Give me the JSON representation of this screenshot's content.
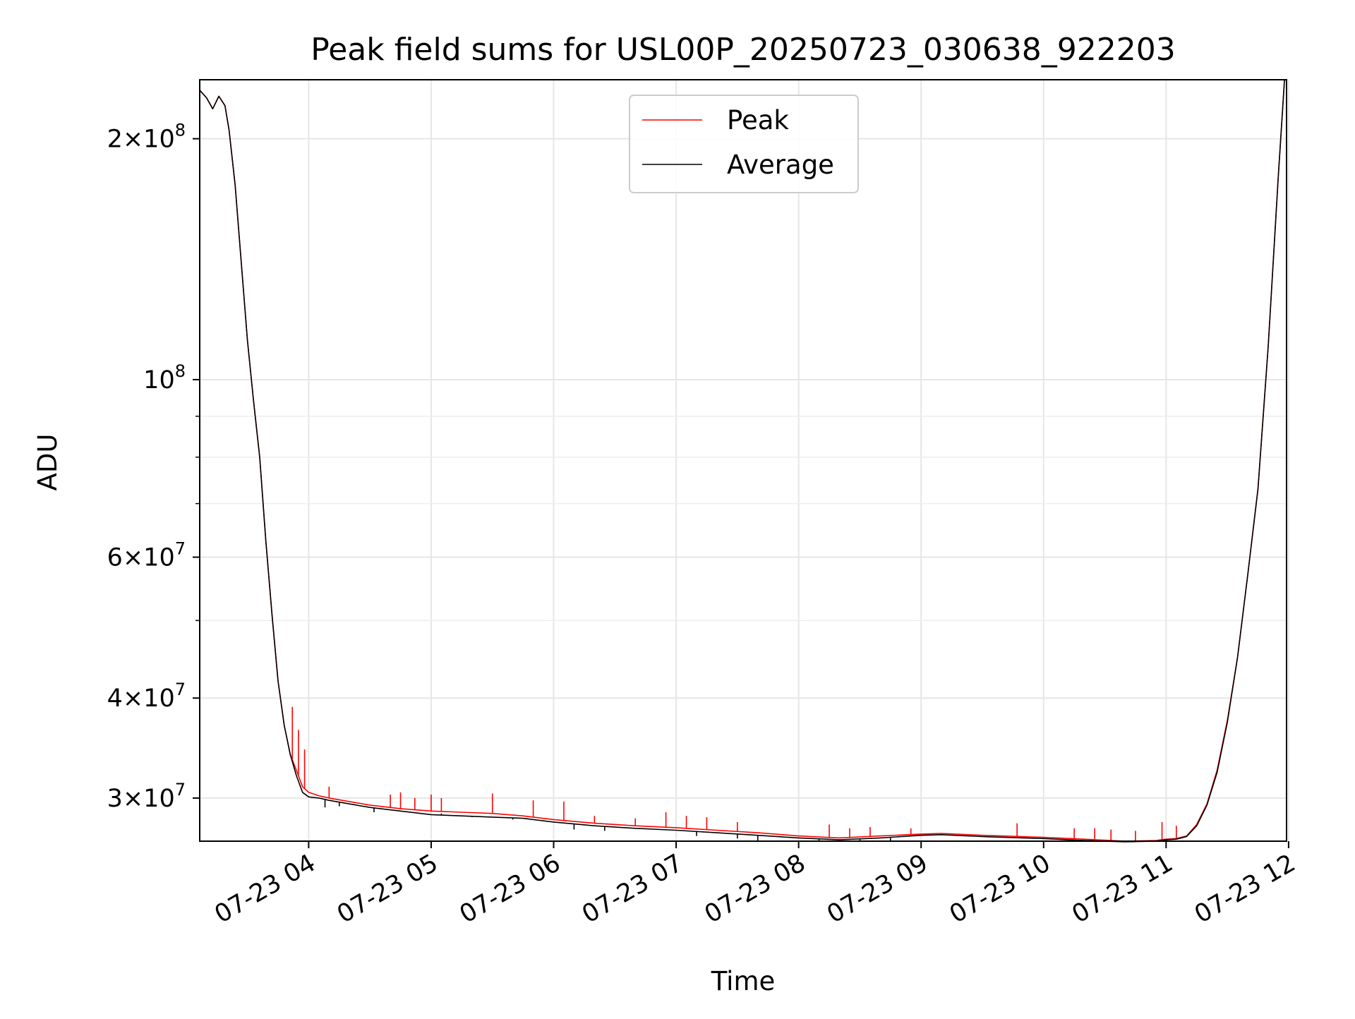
{
  "chart_data": {
    "type": "line",
    "title": "Peak field sums for USL00P_20250723_030638_922203",
    "xlabel": "Time",
    "ylabel": "ADU",
    "yscale": "log",
    "ylim": [
      26500000,
      237000000
    ],
    "xlim": [
      "2025-07-23 03:06:38",
      "2025-07-23 11:59:00"
    ],
    "grid": true,
    "legend": {
      "placement": "top-center",
      "entries": [
        "Peak",
        "Average"
      ]
    },
    "x_ticks": [
      {
        "x": "2025-07-23 04:00",
        "label": "07-23 04"
      },
      {
        "x": "2025-07-23 05:00",
        "label": "07-23 05"
      },
      {
        "x": "2025-07-23 06:00",
        "label": "07-23 06"
      },
      {
        "x": "2025-07-23 07:00",
        "label": "07-23 07"
      },
      {
        "x": "2025-07-23 08:00",
        "label": "07-23 08"
      },
      {
        "x": "2025-07-23 09:00",
        "label": "07-23 09"
      },
      {
        "x": "2025-07-23 10:00",
        "label": "07-23 10"
      },
      {
        "x": "2025-07-23 11:00",
        "label": "07-23 11"
      },
      {
        "x": "2025-07-23 12:00",
        "label": "07-23 12"
      }
    ],
    "y_ticks": [
      {
        "value": 30000000,
        "mantissa": "3",
        "exp": "7"
      },
      {
        "value": 40000000,
        "mantissa": "4",
        "exp": "7"
      },
      {
        "value": 60000000,
        "mantissa": "6",
        "exp": "7"
      },
      {
        "value": 100000000,
        "mantissa": "",
        "exp": "8"
      },
      {
        "value": 200000000,
        "mantissa": "2",
        "exp": "8"
      }
    ],
    "y_minor_ticks": [
      50000000,
      70000000,
      80000000,
      90000000
    ],
    "series": [
      {
        "name": "Peak",
        "color": "#ff0000",
        "x": [
          "2025-07-23 03:06:38",
          "2025-07-23 03:10",
          "2025-07-23 03:13",
          "2025-07-23 03:16",
          "2025-07-23 03:19",
          "2025-07-23 03:21",
          "2025-07-23 03:24",
          "2025-07-23 03:27",
          "2025-07-23 03:30",
          "2025-07-23 03:33",
          "2025-07-23 03:36",
          "2025-07-23 03:39",
          "2025-07-23 03:42",
          "2025-07-23 03:45",
          "2025-07-23 03:48",
          "2025-07-23 03:51",
          "2025-07-23 03:54",
          "2025-07-23 03:57",
          "2025-07-23 04:00",
          "2025-07-23 04:05",
          "2025-07-23 04:10",
          "2025-07-23 04:20",
          "2025-07-23 04:30",
          "2025-07-23 04:45",
          "2025-07-23 05:00",
          "2025-07-23 05:15",
          "2025-07-23 05:30",
          "2025-07-23 05:45",
          "2025-07-23 06:00",
          "2025-07-23 06:20",
          "2025-07-23 06:40",
          "2025-07-23 07:00",
          "2025-07-23 07:20",
          "2025-07-23 07:40",
          "2025-07-23 08:00",
          "2025-07-23 08:20",
          "2025-07-23 08:40",
          "2025-07-23 09:00",
          "2025-07-23 09:10",
          "2025-07-23 09:30",
          "2025-07-23 10:00",
          "2025-07-23 10:20",
          "2025-07-23 10:40",
          "2025-07-23 10:55",
          "2025-07-23 11:00",
          "2025-07-23 11:05",
          "2025-07-23 11:10",
          "2025-07-23 11:15",
          "2025-07-23 11:20",
          "2025-07-23 11:25",
          "2025-07-23 11:30",
          "2025-07-23 11:35",
          "2025-07-23 11:40",
          "2025-07-23 11:45",
          "2025-07-23 11:50",
          "2025-07-23 11:55",
          "2025-07-23 11:58"
        ],
        "y": [
          230000000,
          225000000,
          218000000,
          226000000,
          220000000,
          205000000,
          175000000,
          140000000,
          112000000,
          94000000,
          80000000,
          63000000,
          51000000,
          42000000,
          37000000,
          34000000,
          32500000,
          31000000,
          30500000,
          30200000,
          30000000,
          29700000,
          29400000,
          29100000,
          28900000,
          28800000,
          28700000,
          28500000,
          28200000,
          27900000,
          27700000,
          27550000,
          27350000,
          27150000,
          26900000,
          26750000,
          26900000,
          27050000,
          27100000,
          26950000,
          26800000,
          26650000,
          26500000,
          26550000,
          26650000,
          26700000,
          26900000,
          27800000,
          29500000,
          32500000,
          37500000,
          45000000,
          57000000,
          73000000,
          110000000,
          180000000,
          237000000
        ]
      },
      {
        "name": "Average",
        "color": "#000000",
        "x": [
          "2025-07-23 03:06:38",
          "2025-07-23 03:10",
          "2025-07-23 03:13",
          "2025-07-23 03:16",
          "2025-07-23 03:19",
          "2025-07-23 03:21",
          "2025-07-23 03:24",
          "2025-07-23 03:27",
          "2025-07-23 03:30",
          "2025-07-23 03:33",
          "2025-07-23 03:36",
          "2025-07-23 03:39",
          "2025-07-23 03:42",
          "2025-07-23 03:45",
          "2025-07-23 03:48",
          "2025-07-23 03:51",
          "2025-07-23 03:54",
          "2025-07-23 03:57",
          "2025-07-23 04:00",
          "2025-07-23 04:05",
          "2025-07-23 04:10",
          "2025-07-23 04:20",
          "2025-07-23 04:30",
          "2025-07-23 04:45",
          "2025-07-23 05:00",
          "2025-07-23 05:15",
          "2025-07-23 05:30",
          "2025-07-23 05:45",
          "2025-07-23 06:00",
          "2025-07-23 06:20",
          "2025-07-23 06:40",
          "2025-07-23 07:00",
          "2025-07-23 07:20",
          "2025-07-23 07:40",
          "2025-07-23 08:00",
          "2025-07-23 08:20",
          "2025-07-23 08:40",
          "2025-07-23 09:00",
          "2025-07-23 09:10",
          "2025-07-23 09:30",
          "2025-07-23 10:00",
          "2025-07-23 10:20",
          "2025-07-23 10:40",
          "2025-07-23 10:55",
          "2025-07-23 11:00",
          "2025-07-23 11:05",
          "2025-07-23 11:10",
          "2025-07-23 11:15",
          "2025-07-23 11:20",
          "2025-07-23 11:25",
          "2025-07-23 11:30",
          "2025-07-23 11:35",
          "2025-07-23 11:40",
          "2025-07-23 11:45",
          "2025-07-23 11:50",
          "2025-07-23 11:55",
          "2025-07-23 11:58"
        ],
        "y": [
          230000000,
          225000000,
          218000000,
          226000000,
          220000000,
          205000000,
          175000000,
          140000000,
          112000000,
          94000000,
          80000000,
          63000000,
          51000000,
          42000000,
          37000000,
          34000000,
          32000000,
          30500000,
          30100000,
          30000000,
          29800000,
          29500000,
          29200000,
          28900000,
          28600000,
          28500000,
          28400000,
          28300000,
          28000000,
          27700000,
          27500000,
          27350000,
          27150000,
          26950000,
          26750000,
          26600000,
          26750000,
          26950000,
          27000000,
          26850000,
          26700000,
          26550000,
          26450000,
          26500000,
          26600000,
          26650000,
          26850000,
          27700000,
          29400000,
          32300000,
          37300000,
          45000000,
          57000000,
          73000000,
          110000000,
          180000000,
          237000000
        ]
      }
    ],
    "spikes": {
      "Peak_up": [
        {
          "x": "2025-07-23 03:52",
          "y": 39000000
        },
        {
          "x": "2025-07-23 03:55",
          "y": 36500000
        },
        {
          "x": "2025-07-23 03:58",
          "y": 34500000
        },
        {
          "x": "2025-07-23 04:10",
          "y": 31000000
        },
        {
          "x": "2025-07-23 04:40",
          "y": 30300000
        },
        {
          "x": "2025-07-23 04:45",
          "y": 30500000
        },
        {
          "x": "2025-07-23 04:52",
          "y": 30000000
        },
        {
          "x": "2025-07-23 05:00",
          "y": 30300000
        },
        {
          "x": "2025-07-23 05:05",
          "y": 30000000
        },
        {
          "x": "2025-07-23 05:30",
          "y": 30400000
        },
        {
          "x": "2025-07-23 05:50",
          "y": 29800000
        },
        {
          "x": "2025-07-23 06:05",
          "y": 29700000
        },
        {
          "x": "2025-07-23 06:20",
          "y": 28500000
        },
        {
          "x": "2025-07-23 06:40",
          "y": 28300000
        },
        {
          "x": "2025-07-23 06:55",
          "y": 28800000
        },
        {
          "x": "2025-07-23 07:05",
          "y": 28500000
        },
        {
          "x": "2025-07-23 07:15",
          "y": 28400000
        },
        {
          "x": "2025-07-23 07:30",
          "y": 28000000
        },
        {
          "x": "2025-07-23 08:15",
          "y": 27800000
        },
        {
          "x": "2025-07-23 08:25",
          "y": 27500000
        },
        {
          "x": "2025-07-23 08:35",
          "y": 27600000
        },
        {
          "x": "2025-07-23 08:55",
          "y": 27500000
        },
        {
          "x": "2025-07-23 09:47",
          "y": 27900000
        },
        {
          "x": "2025-07-23 10:15",
          "y": 27500000
        },
        {
          "x": "2025-07-23 10:25",
          "y": 27500000
        },
        {
          "x": "2025-07-23 10:33",
          "y": 27400000
        },
        {
          "x": "2025-07-23 10:45",
          "y": 27300000
        },
        {
          "x": "2025-07-23 10:58",
          "y": 28000000
        },
        {
          "x": "2025-07-23 11:05",
          "y": 27700000
        }
      ],
      "Average_down": [
        {
          "x": "2025-07-23 04:08",
          "y": 29200000
        },
        {
          "x": "2025-07-23 04:15",
          "y": 29300000
        },
        {
          "x": "2025-07-23 04:32",
          "y": 28800000
        },
        {
          "x": "2025-07-23 05:05",
          "y": 28700000
        },
        {
          "x": "2025-07-23 05:20",
          "y": 28400000
        },
        {
          "x": "2025-07-23 05:40",
          "y": 28200000
        },
        {
          "x": "2025-07-23 06:10",
          "y": 27400000
        },
        {
          "x": "2025-07-23 06:25",
          "y": 27300000
        },
        {
          "x": "2025-07-23 07:10",
          "y": 26900000
        },
        {
          "x": "2025-07-23 07:30",
          "y": 26700000
        },
        {
          "x": "2025-07-23 07:40",
          "y": 26550000
        },
        {
          "x": "2025-07-23 08:10",
          "y": 26500000
        },
        {
          "x": "2025-07-23 08:30",
          "y": 26450000
        },
        {
          "x": "2025-07-23 08:45",
          "y": 26500000
        }
      ]
    }
  }
}
